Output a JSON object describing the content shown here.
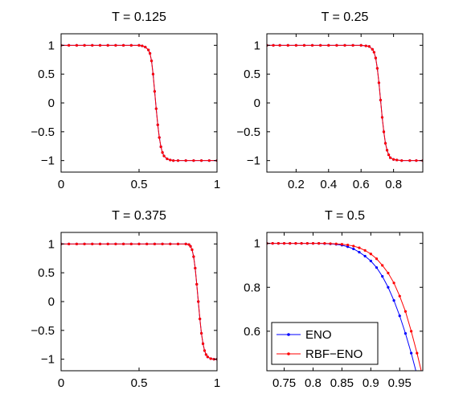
{
  "chart_data": [
    {
      "type": "line",
      "title": "T = 0.125",
      "xlim": [
        0,
        1
      ],
      "ylim": [
        -1.2,
        1.2
      ],
      "xticks": [
        0,
        0.5,
        1
      ],
      "xtick_labels": [
        "0",
        "0.5",
        "1"
      ],
      "yticks": [
        1,
        0.5,
        0,
        -0.5,
        -1
      ],
      "ytick_labels": [
        "1",
        "0.5",
        "0",
        "−0.5",
        "−1"
      ],
      "grid": false,
      "legend": null,
      "series": [
        {
          "color": "#0000ff",
          "marker": "dot",
          "values_desc": "tanh profile",
          "x": [
            0,
            0.05,
            0.1,
            0.15,
            0.2,
            0.25,
            0.3,
            0.35,
            0.4,
            0.45,
            0.5,
            0.52,
            0.54,
            0.56,
            0.57,
            0.58,
            0.59,
            0.6,
            0.61,
            0.62,
            0.63,
            0.64,
            0.65,
            0.66,
            0.68,
            0.7,
            0.72,
            0.75,
            0.8,
            0.85,
            0.9,
            0.95,
            1
          ],
          "y": [
            1,
            1,
            1,
            1,
            1,
            1,
            1,
            1,
            1,
            1,
            1,
            0.99,
            0.97,
            0.92,
            0.86,
            0.73,
            0.5,
            0.2,
            -0.1,
            -0.38,
            -0.6,
            -0.76,
            -0.86,
            -0.92,
            -0.97,
            -0.99,
            -1,
            -1,
            -1,
            -1,
            -1,
            -1,
            -1
          ]
        },
        {
          "color": "#ff0000",
          "marker": "dot",
          "x": [
            0,
            0.05,
            0.1,
            0.15,
            0.2,
            0.25,
            0.3,
            0.35,
            0.4,
            0.45,
            0.5,
            0.52,
            0.54,
            0.56,
            0.57,
            0.58,
            0.59,
            0.6,
            0.61,
            0.62,
            0.63,
            0.64,
            0.65,
            0.66,
            0.68,
            0.7,
            0.72,
            0.75,
            0.8,
            0.85,
            0.9,
            0.95,
            1
          ],
          "y": [
            1,
            1,
            1,
            1,
            1,
            1,
            1,
            1,
            1,
            1,
            1,
            0.99,
            0.97,
            0.92,
            0.86,
            0.73,
            0.5,
            0.2,
            -0.1,
            -0.38,
            -0.6,
            -0.76,
            -0.86,
            -0.92,
            -0.97,
            -0.99,
            -1,
            -1,
            -1,
            -1,
            -1,
            -1,
            -1
          ]
        }
      ]
    },
    {
      "type": "line",
      "title": "T = 0.25",
      "xlim": [
        0.02,
        0.98
      ],
      "ylim": [
        -1.2,
        1.2
      ],
      "xticks": [
        0.2,
        0.4,
        0.6,
        0.8
      ],
      "xtick_labels": [
        "0.2",
        "0.4",
        "0.6",
        "0.8"
      ],
      "yticks": [
        1,
        0.5,
        0,
        -0.5,
        -1
      ],
      "ytick_labels": [
        "1",
        "0.5",
        "0",
        "−0.5",
        "−1"
      ],
      "grid": false,
      "legend": null,
      "series": [
        {
          "color": "#0000ff",
          "marker": "dot",
          "x": [
            0.02,
            0.06,
            0.1,
            0.15,
            0.2,
            0.25,
            0.3,
            0.35,
            0.4,
            0.45,
            0.5,
            0.55,
            0.6,
            0.63,
            0.65,
            0.67,
            0.68,
            0.69,
            0.7,
            0.71,
            0.72,
            0.73,
            0.74,
            0.75,
            0.76,
            0.77,
            0.78,
            0.8,
            0.82,
            0.85,
            0.9,
            0.94,
            0.98
          ],
          "y": [
            1,
            1,
            1,
            1,
            1,
            1,
            1,
            1,
            1,
            1,
            1,
            1,
            1,
            0.99,
            0.98,
            0.93,
            0.88,
            0.78,
            0.6,
            0.35,
            0.05,
            -0.25,
            -0.5,
            -0.7,
            -0.82,
            -0.9,
            -0.95,
            -0.98,
            -0.99,
            -1,
            -1,
            -1,
            -1
          ]
        },
        {
          "color": "#ff0000",
          "marker": "dot",
          "x": [
            0.02,
            0.06,
            0.1,
            0.15,
            0.2,
            0.25,
            0.3,
            0.35,
            0.4,
            0.45,
            0.5,
            0.55,
            0.6,
            0.63,
            0.65,
            0.67,
            0.68,
            0.69,
            0.7,
            0.71,
            0.72,
            0.73,
            0.74,
            0.75,
            0.76,
            0.77,
            0.78,
            0.8,
            0.82,
            0.85,
            0.9,
            0.94,
            0.98
          ],
          "y": [
            1,
            1,
            1,
            1,
            1,
            1,
            1,
            1,
            1,
            1,
            1,
            1,
            1,
            0.99,
            0.98,
            0.93,
            0.88,
            0.78,
            0.6,
            0.35,
            0.05,
            -0.25,
            -0.5,
            -0.7,
            -0.82,
            -0.9,
            -0.95,
            -0.98,
            -0.99,
            -1,
            -1,
            -1,
            -1
          ]
        }
      ]
    },
    {
      "type": "line",
      "title": "T = 0.375",
      "xlim": [
        0,
        1
      ],
      "ylim": [
        -1.2,
        1.2
      ],
      "xticks": [
        0,
        0.5,
        1
      ],
      "xtick_labels": [
        "0",
        "0.5",
        "1"
      ],
      "yticks": [
        1,
        0.5,
        0,
        -0.5,
        -1
      ],
      "ytick_labels": [
        "1",
        "0.5",
        "0",
        "−0.5",
        "−1"
      ],
      "grid": false,
      "legend": null,
      "series": [
        {
          "color": "#0000ff",
          "marker": "dot",
          "x": [
            0,
            0.05,
            0.1,
            0.15,
            0.2,
            0.25,
            0.3,
            0.35,
            0.4,
            0.45,
            0.5,
            0.55,
            0.6,
            0.65,
            0.7,
            0.75,
            0.8,
            0.82,
            0.83,
            0.84,
            0.85,
            0.86,
            0.87,
            0.88,
            0.89,
            0.9,
            0.91,
            0.92,
            0.93,
            0.94,
            0.96,
            0.98,
            1
          ],
          "y": [
            1,
            1,
            1,
            1,
            1,
            1,
            1,
            1,
            1,
            1,
            1,
            1,
            1,
            1,
            1,
            1,
            1,
            0.99,
            0.96,
            0.9,
            0.78,
            0.58,
            0.3,
            0,
            -0.3,
            -0.55,
            -0.73,
            -0.85,
            -0.92,
            -0.96,
            -0.99,
            -1,
            -1
          ]
        },
        {
          "color": "#ff0000",
          "marker": "dot",
          "x": [
            0,
            0.05,
            0.1,
            0.15,
            0.2,
            0.25,
            0.3,
            0.35,
            0.4,
            0.45,
            0.5,
            0.55,
            0.6,
            0.65,
            0.7,
            0.75,
            0.8,
            0.82,
            0.83,
            0.84,
            0.85,
            0.86,
            0.87,
            0.88,
            0.89,
            0.9,
            0.91,
            0.92,
            0.93,
            0.94,
            0.96,
            0.98,
            1
          ],
          "y": [
            1,
            1,
            1,
            1,
            1,
            1,
            1,
            1,
            1,
            1,
            1,
            1,
            1,
            1,
            1,
            1,
            1,
            0.99,
            0.96,
            0.9,
            0.78,
            0.58,
            0.3,
            0,
            -0.3,
            -0.55,
            -0.73,
            -0.85,
            -0.92,
            -0.96,
            -0.99,
            -1,
            -1
          ]
        }
      ]
    },
    {
      "type": "line",
      "title": "T = 0.5",
      "xlim": [
        0.72,
        0.99
      ],
      "ylim": [
        0.42,
        1.05
      ],
      "xticks": [
        0.75,
        0.8,
        0.85,
        0.9,
        0.95
      ],
      "xtick_labels": [
        "0.75",
        "0.8",
        "0.85",
        "0.9",
        "0.95"
      ],
      "yticks": [
        1,
        0.8,
        0.6
      ],
      "ytick_labels": [
        "1",
        "0.8",
        "0.6"
      ],
      "grid": false,
      "legend": {
        "position": "bottom-left",
        "entries": [
          {
            "label": "ENO",
            "color": "#0000ff"
          },
          {
            "label": "RBF−ENO",
            "color": "#ff0000"
          }
        ]
      },
      "series": [
        {
          "name": "ENO",
          "color": "#0000ff",
          "marker": "dot",
          "x": [
            0.72,
            0.73,
            0.74,
            0.75,
            0.76,
            0.77,
            0.78,
            0.79,
            0.8,
            0.81,
            0.82,
            0.83,
            0.84,
            0.85,
            0.86,
            0.87,
            0.88,
            0.89,
            0.9,
            0.91,
            0.92,
            0.93,
            0.94,
            0.95,
            0.96,
            0.97,
            0.98
          ],
          "y": [
            1,
            1,
            1,
            1,
            1,
            1,
            1,
            1,
            1,
            1,
            0.999,
            0.998,
            0.996,
            0.992,
            0.985,
            0.975,
            0.96,
            0.942,
            0.92,
            0.89,
            0.85,
            0.8,
            0.74,
            0.67,
            0.59,
            0.5,
            0.4
          ]
        },
        {
          "name": "RBF−ENO",
          "color": "#ff0000",
          "marker": "dot",
          "x": [
            0.72,
            0.73,
            0.74,
            0.75,
            0.76,
            0.77,
            0.78,
            0.79,
            0.8,
            0.81,
            0.82,
            0.83,
            0.84,
            0.85,
            0.86,
            0.87,
            0.88,
            0.89,
            0.9,
            0.91,
            0.92,
            0.93,
            0.94,
            0.95,
            0.96,
            0.97,
            0.98,
            0.99
          ],
          "y": [
            1,
            1,
            1,
            1,
            1,
            1,
            1,
            1,
            1,
            1,
            1,
            0.999,
            0.998,
            0.996,
            0.993,
            0.988,
            0.98,
            0.968,
            0.952,
            0.93,
            0.9,
            0.865,
            0.82,
            0.76,
            0.69,
            0.6,
            0.5,
            0.39
          ]
        }
      ]
    }
  ]
}
